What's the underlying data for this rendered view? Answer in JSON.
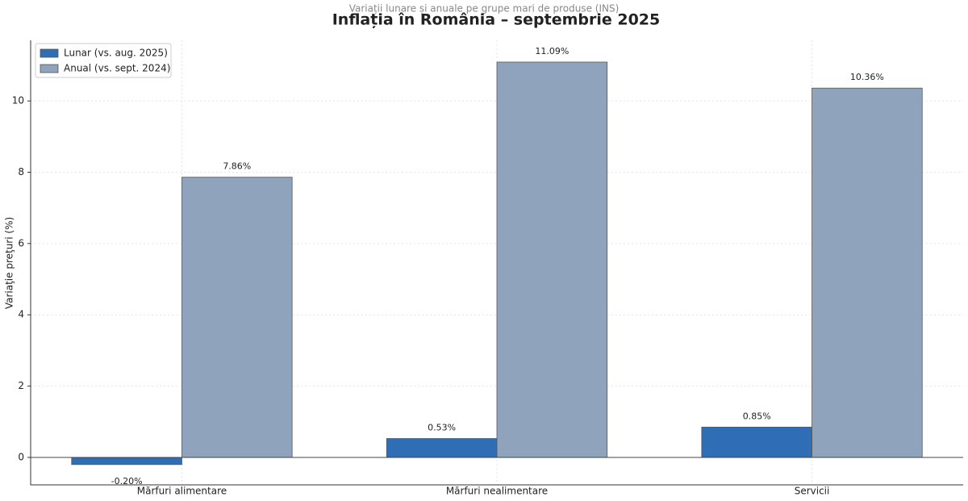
{
  "chart_data": {
    "type": "bar",
    "title": "Inflația în România – septembrie 2025",
    "subtitle": "Variații lunare și anuale pe grupe mari de produse (INS)",
    "y_label": "Variaţie preţuri (%)",
    "categories": [
      "Mărfuri alimentare",
      "Mărfuri nealimentare",
      "Servicii"
    ],
    "series": [
      {
        "name": "Lunar (vs. aug. 2025)",
        "color": "#2f6db5",
        "values": [
          -0.2,
          0.53,
          0.85
        ],
        "value_labels": [
          "-0.20%",
          "0.53%",
          "0.85%"
        ]
      },
      {
        "name": "Anual (vs. sept. 2024)",
        "color": "#8fa3bd",
        "values": [
          7.86,
          11.09,
          10.36
        ],
        "value_labels": [
          "7.86%",
          "11.09%",
          "10.36%"
        ]
      }
    ],
    "ylim": [
      -0.77,
      11.7
    ],
    "yticks": [
      0,
      2,
      4,
      6,
      8,
      10
    ],
    "grid": true,
    "legend": "upper-left"
  }
}
